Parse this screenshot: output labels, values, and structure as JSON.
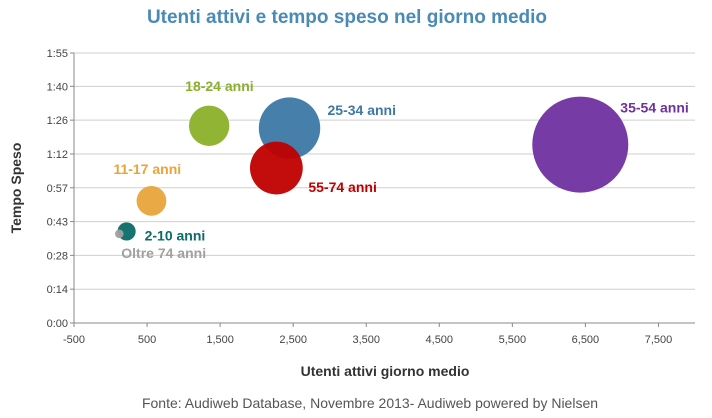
{
  "chart_data": {
    "type": "bubble",
    "title": "Utenti attivi e tempo speso nel giorno medio",
    "title_color": "#4a8ab5",
    "xlabel": "Utenti attivi giorno medio",
    "ylabel": "Tempo Speso",
    "source": "Fonte: Audiweb Database, Novembre  2013- Audiweb powered by Nielsen",
    "xlim": [
      -500,
      8000
    ],
    "ylim_minutes": [
      0,
      115
    ],
    "x_ticks": [
      "-500",
      "500",
      "1,500",
      "2,500",
      "3,500",
      "4,500",
      "5,500",
      "6,500",
      "7,500"
    ],
    "x_tick_values": [
      -500,
      500,
      1500,
      2500,
      3500,
      4500,
      5500,
      6500,
      7500
    ],
    "y_ticks": [
      "0:00",
      "0:14",
      "0:28",
      "0:43",
      "0:57",
      "1:12",
      "1:26",
      "1:40",
      "1:55"
    ],
    "y_tick_values_minutes": [
      0,
      14.4,
      28.8,
      43.2,
      57.6,
      72,
      86.4,
      100.8,
      115
    ],
    "grid": "horizontal",
    "series": [
      {
        "name": "2-10 anni",
        "x": 220,
        "y": 39,
        "size": 0.19,
        "color": "#0b6b68"
      },
      {
        "name": "Oltre 74 anni",
        "x": 120,
        "y": 38,
        "size": 0.09,
        "color": "#a0a0a0"
      },
      {
        "name": "11-17 anni",
        "x": 560,
        "y": 52,
        "size": 0.31,
        "color": "#e8a43a"
      },
      {
        "name": "18-24 anni",
        "x": 1350,
        "y": 84,
        "size": 0.42,
        "color": "#8bb02a"
      },
      {
        "name": "25-34 anni",
        "x": 2450,
        "y": 83,
        "size": 0.64,
        "color": "#3d78a6"
      },
      {
        "name": "55-74 anni",
        "x": 2270,
        "y": 66,
        "size": 0.55,
        "color": "#c00000"
      },
      {
        "name": "35-54 anni",
        "x": 6430,
        "y": 76,
        "size": 1.0,
        "color": "#7030a0"
      }
    ]
  }
}
